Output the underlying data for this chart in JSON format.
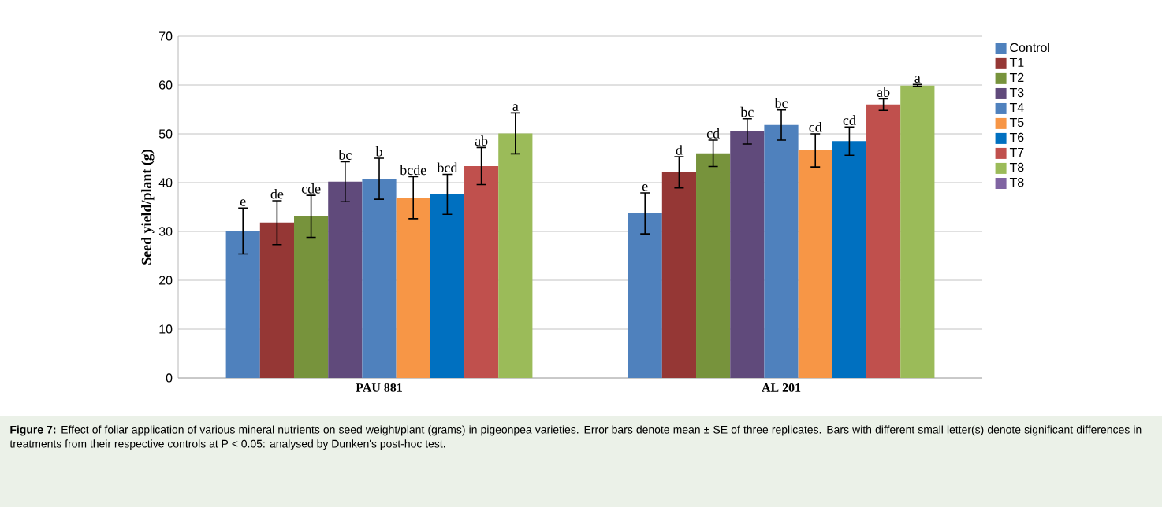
{
  "chart_data": {
    "type": "bar",
    "ylabel": "Seed yield/plant (g)",
    "categories": [
      "PAU 881",
      "AL 201"
    ],
    "ylim": [
      0,
      70
    ],
    "yticks": [
      0,
      10,
      20,
      30,
      40,
      50,
      60,
      70
    ],
    "grid": "y",
    "legend": "right",
    "series": [
      {
        "name": "Control",
        "color": "#4f81bd",
        "values": [
          30.1,
          33.7
        ],
        "errors": [
          4.7,
          4.2
        ],
        "value_labels": [
          "e",
          "e"
        ]
      },
      {
        "name": "T1",
        "color": "#953735",
        "values": [
          31.8,
          42.1
        ],
        "errors": [
          4.5,
          3.2
        ],
        "value_labels": [
          "de",
          "d"
        ]
      },
      {
        "name": "T2",
        "color": "#77933c",
        "values": [
          33.1,
          46.0
        ],
        "errors": [
          4.3,
          2.7
        ],
        "value_labels": [
          "cde",
          "cd"
        ]
      },
      {
        "name": "T3",
        "color": "#604a7b",
        "values": [
          40.2,
          50.5
        ],
        "errors": [
          4.1,
          2.6
        ],
        "value_labels": [
          "bc",
          "bc"
        ]
      },
      {
        "name": "T4",
        "color": "#4f81bd",
        "values": [
          40.8,
          51.8
        ],
        "errors": [
          4.2,
          3.1
        ],
        "value_labels": [
          "b",
          "bc"
        ]
      },
      {
        "name": "T5",
        "color": "#f79646",
        "values": [
          36.9,
          46.6
        ],
        "errors": [
          4.3,
          3.4
        ],
        "value_labels": [
          "bcde",
          "cd"
        ]
      },
      {
        "name": "T6",
        "color": "#0070c0",
        "values": [
          37.6,
          48.5
        ],
        "errors": [
          4.1,
          2.9
        ],
        "value_labels": [
          "bcd",
          "cd"
        ]
      },
      {
        "name": "T7",
        "color": "#c0504d",
        "values": [
          43.4,
          56.0
        ],
        "errors": [
          3.8,
          1.2
        ],
        "value_labels": [
          "ab",
          "ab"
        ]
      },
      {
        "name": "T8",
        "color": "#9bbb59",
        "values": [
          50.1,
          59.9
        ],
        "errors": [
          4.2,
          0.2
        ],
        "value_labels": [
          "a",
          "a"
        ]
      },
      {
        "name": "T8",
        "color": "#8064a2",
        "values": [
          null,
          null
        ]
      }
    ],
    "annotations": [
      "**Figure 7:** Effect of foliar application of various mineral nutrients on seed weight/plant (grams) in pigeonpea varieties. Error bars denote mean ± SE of three replicates. Bars with different small letter(s) denote significant differences in treatments from their respective controls at P < 0.05: analysed by Dunken's post-hoc test."
    ]
  }
}
